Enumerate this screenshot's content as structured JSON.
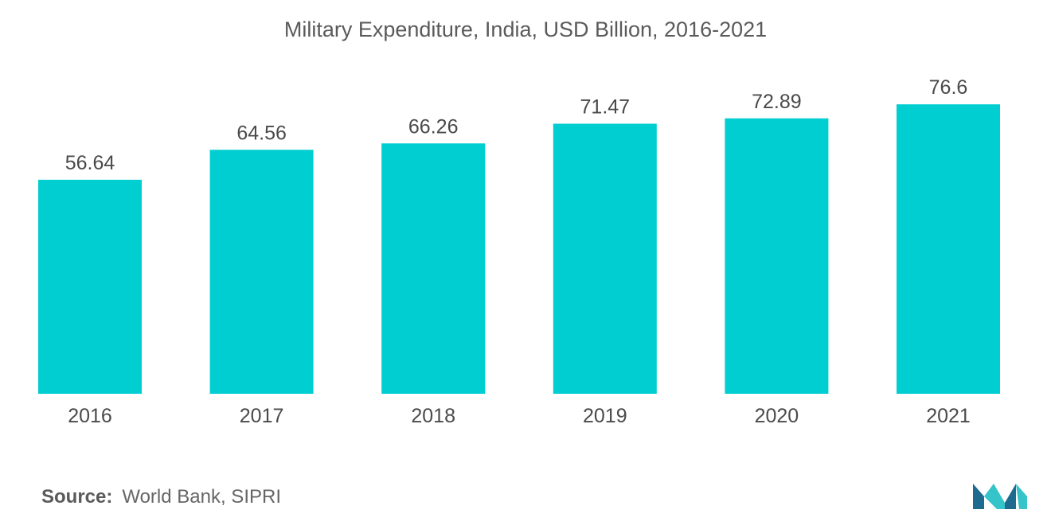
{
  "title": "Military Expenditure, India, USD Billion, 2016-2021",
  "source": {
    "label": "Source:",
    "text": "World Bank, SIPRI"
  },
  "colors": {
    "bar": "#00CED1",
    "text": "#4a4a4a",
    "logo_dark": "#1F6B8F",
    "logo_light": "#34C4C9"
  },
  "chart_data": {
    "type": "bar",
    "title": "Military Expenditure, India, USD Billion, 2016-2021",
    "categories": [
      "2016",
      "2017",
      "2018",
      "2019",
      "2020",
      "2021"
    ],
    "values": [
      56.64,
      64.56,
      66.26,
      71.47,
      72.89,
      76.6
    ],
    "labels": [
      "56.64",
      "64.56",
      "66.26",
      "71.47",
      "72.89",
      "76.6"
    ],
    "xlabel": "",
    "ylabel": "",
    "ylim": [
      0,
      80
    ],
    "grid": false,
    "legend": "none"
  },
  "logo": {
    "icon": "mordor-intelligence-logo"
  }
}
